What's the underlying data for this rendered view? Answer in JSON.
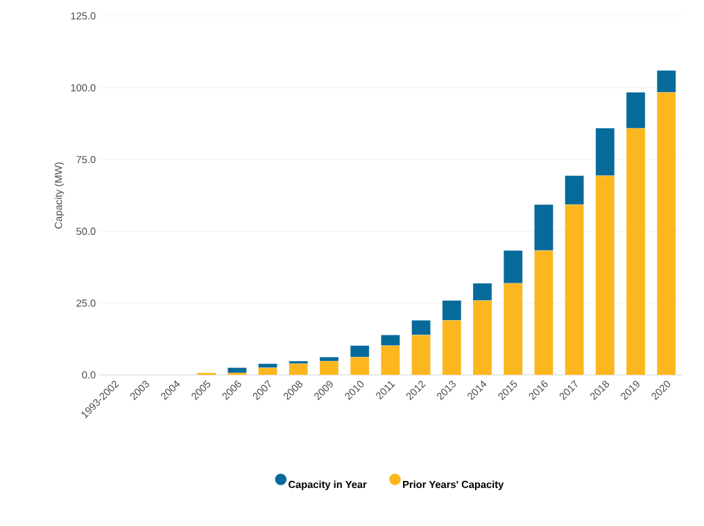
{
  "chart_data": {
    "type": "bar",
    "stacked": true,
    "ylabel": "Capacity (MW)",
    "categories": [
      "1993-2002",
      "2003",
      "2004",
      "2005",
      "2006",
      "2007",
      "2008",
      "2009",
      "2010",
      "2011",
      "2012",
      "2013",
      "2014",
      "2015",
      "2016",
      "2017",
      "2018",
      "2019",
      "2020"
    ],
    "series": [
      {
        "name": "Prior Years' Capacity",
        "color": "#fcb71e",
        "values": [
          0,
          0,
          0,
          0.7,
          0.7,
          2.5,
          3.9,
          4.8,
          6.2,
          10.2,
          13.9,
          19.0,
          25.9,
          31.9,
          43.3,
          59.3,
          69.4,
          85.9,
          98.4
        ]
      },
      {
        "name": "Capacity in Year",
        "color": "#066a9a",
        "values": [
          0,
          0,
          0,
          0,
          1.8,
          1.4,
          0.9,
          1.4,
          4.0,
          3.7,
          5.1,
          6.9,
          6.0,
          11.4,
          16.0,
          10.1,
          16.5,
          12.5,
          7.6
        ]
      }
    ],
    "ylim": [
      0,
      125
    ],
    "yticks": [
      {
        "value": 0,
        "label": "0.0"
      },
      {
        "value": 25,
        "label": "25.0"
      },
      {
        "value": 50,
        "label": "50.0"
      },
      {
        "value": 75,
        "label": "75.0"
      },
      {
        "value": 100,
        "label": "100.0"
      },
      {
        "value": 125,
        "label": "125.0"
      }
    ],
    "grid": "y",
    "legend": "bottom",
    "marker": "circle"
  }
}
